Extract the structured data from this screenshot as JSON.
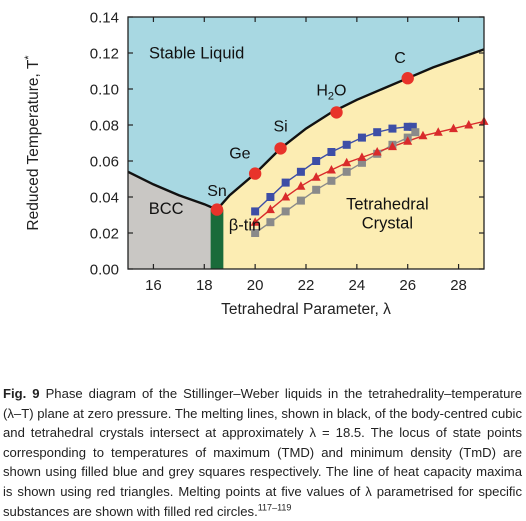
{
  "chart_data": {
    "type": "scatter",
    "xlabel": "Tetrahedral Parameter, λ",
    "ylabel": "Reduced Temperature, T*",
    "xlim": [
      15,
      29
    ],
    "ylim": [
      0,
      0.14
    ],
    "x_ticks": [
      "16",
      "18",
      "20",
      "22",
      "24",
      "26",
      "28"
    ],
    "y_ticks": [
      "0.00",
      "0.02",
      "0.04",
      "0.06",
      "0.08",
      "0.10",
      "0.12",
      "0.14"
    ],
    "grid": false,
    "regions": {
      "liquid": {
        "label": "Stable Liquid",
        "color": "#a8d8e2"
      },
      "bcc": {
        "label": "BCC",
        "color": "#c9c7c4"
      },
      "tetrahedral": {
        "label_line1": "Tetrahedral",
        "label_line2": "Crystal",
        "color": "#fcedb3"
      },
      "beta_tin": {
        "label": "β-tin",
        "color": "#1a6b3a",
        "lambda_range": [
          18.25,
          18.75
        ]
      }
    },
    "melting_line_bcc": {
      "color": "#111111",
      "x": [
        15.0,
        16.0,
        17.0,
        18.0,
        18.5
      ],
      "y": [
        0.054,
        0.047,
        0.041,
        0.036,
        0.033
      ]
    },
    "melting_line_tetrahedral": {
      "color": "#111111",
      "x": [
        18.5,
        19.0,
        20.0,
        21.0,
        22.0,
        23.0,
        24.0,
        25.0,
        26.0,
        27.0,
        28.0,
        29.0
      ],
      "y": [
        0.033,
        0.041,
        0.053,
        0.067,
        0.078,
        0.087,
        0.094,
        0.1,
        0.106,
        0.112,
        0.117,
        0.122
      ]
    },
    "series": [
      {
        "name": "TMD",
        "marker": "square",
        "color": "#3d4ea6",
        "x": [
          20.0,
          20.6,
          21.2,
          21.8,
          22.4,
          23.0,
          23.6,
          24.2,
          24.8,
          25.4,
          26.0,
          26.2
        ],
        "y": [
          0.032,
          0.04,
          0.048,
          0.054,
          0.06,
          0.065,
          0.069,
          0.073,
          0.076,
          0.078,
          0.079,
          0.079
        ]
      },
      {
        "name": "TmD",
        "marker": "square",
        "color": "#8a8a8a",
        "x": [
          20.0,
          20.6,
          21.2,
          21.8,
          22.4,
          23.0,
          23.6,
          24.2,
          24.8,
          25.4,
          26.0,
          26.3
        ],
        "y": [
          0.02,
          0.026,
          0.032,
          0.038,
          0.044,
          0.049,
          0.054,
          0.059,
          0.064,
          0.069,
          0.073,
          0.076
        ]
      },
      {
        "name": "Heat capacity maxima",
        "marker": "triangle",
        "color": "#d92b2b",
        "x": [
          20.0,
          20.6,
          21.2,
          21.8,
          22.4,
          23.0,
          23.6,
          24.2,
          24.8,
          25.4,
          26.0,
          26.6,
          27.2,
          27.8,
          28.4,
          29.0
        ],
        "y": [
          0.026,
          0.033,
          0.04,
          0.046,
          0.051,
          0.055,
          0.059,
          0.062,
          0.065,
          0.068,
          0.071,
          0.074,
          0.076,
          0.078,
          0.08,
          0.082
        ]
      },
      {
        "name": "Substance melting points",
        "marker": "circle",
        "color": "#e8332a",
        "x": [
          18.5,
          20.0,
          21.0,
          23.2,
          26.0
        ],
        "y": [
          0.033,
          0.053,
          0.067,
          0.087,
          0.106
        ],
        "labels": [
          "Sn",
          "Ge",
          "Si",
          "H2O",
          "C"
        ]
      }
    ]
  },
  "caption": {
    "figure_label": "Fig. 9",
    "text": "Phase diagram of the Stillinger–Weber liquids in the tetrahedrality–temperature (λ–T) plane at zero pressure. The melting lines, shown in black, of the body-centred cubic and tetrahedral crystals intersect at approximately λ = 18.5. The locus of state points corresponding to temperatures of maximum (TMD) and minimum density (TmD) are shown using filled blue and grey squares respectively. The line of heat capacity maxima is shown using red triangles. Melting points at five values of λ parametrised for specific substances are shown with filled red circles.",
    "refs": "117–119"
  }
}
